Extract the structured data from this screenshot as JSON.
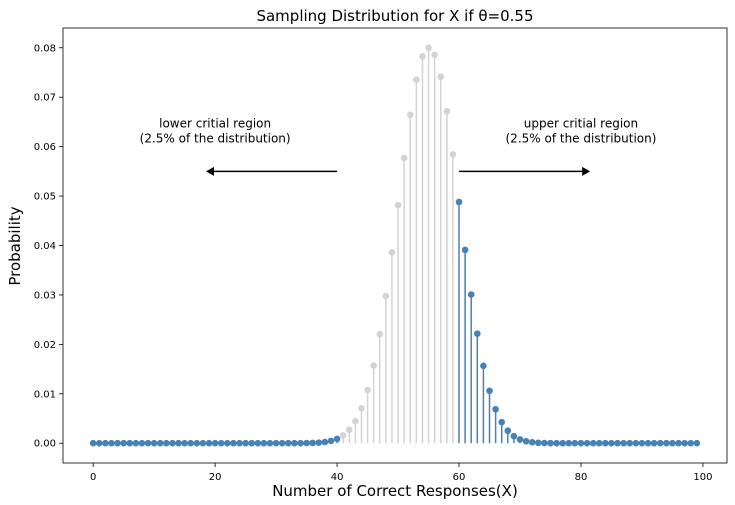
{
  "chart_data": {
    "type": "stem",
    "title": "Sampling Distribution for X if θ=0.55",
    "xlabel": "Number of Correct Responses(X)",
    "ylabel": "Probability",
    "xlim": [
      -4.95,
      103.95
    ],
    "ylim": [
      -0.004,
      0.084
    ],
    "xticks": [
      0,
      20,
      40,
      60,
      80,
      100
    ],
    "yticks": [
      0.0,
      0.01,
      0.02,
      0.03,
      0.04,
      0.05,
      0.06,
      0.07,
      0.08
    ],
    "grid": false,
    "distribution": {
      "family": "binomial",
      "n": 100,
      "p": 0.55
    },
    "series": [
      {
        "color": "#4682b4",
        "x_ranges": [
          [
            0,
            40
          ],
          [
            60,
            99
          ]
        ]
      },
      {
        "color": "#d3d3d3",
        "x_ranges": [
          [
            41,
            59
          ]
        ]
      }
    ],
    "annotations": [
      {
        "lines": [
          "lower critial region",
          "(2.5% of the distribution)"
        ],
        "x": 20,
        "y": 0.061,
        "arrow": {
          "from": [
            40,
            0.055
          ],
          "to": [
            18.5,
            0.055
          ]
        }
      },
      {
        "lines": [
          "upper critial region",
          "(2.5% of the distribution)"
        ],
        "x": 80,
        "y": 0.061,
        "arrow": {
          "from": [
            60,
            0.055
          ],
          "to": [
            81.5,
            0.055
          ]
        }
      }
    ]
  }
}
